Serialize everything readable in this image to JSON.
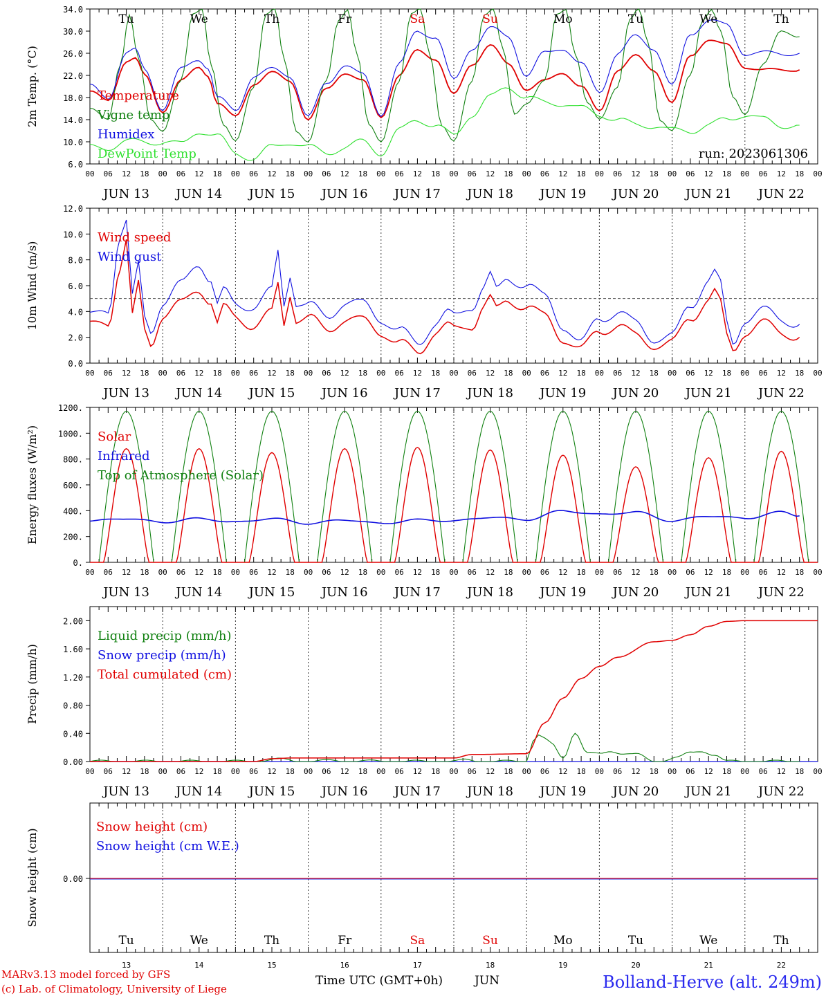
{
  "footer": {
    "model": "MARv3.13 model forced by GFS",
    "copyright": "(c) Lab. of Climatology, University of Liege",
    "time_axis": "Time UTC (GMT+0h)",
    "month": "JUN",
    "station": "Bolland-Herve (alt. 249m)"
  },
  "x_axis": {
    "hour_labels": [
      "00",
      "06",
      "12",
      "18"
    ],
    "end_label": "00",
    "dates": [
      "JUN 13",
      "JUN 14",
      "JUN 15",
      "JUN 16",
      "JUN 17",
      "JUN 18",
      "JUN 19",
      "JUN 20",
      "JUN 21",
      "JUN 22"
    ],
    "day_numbers": [
      "13",
      "14",
      "15",
      "16",
      "17",
      "18",
      "19",
      "20",
      "21",
      "22"
    ],
    "weekdays": [
      "Tu",
      "We",
      "Th",
      "Fr",
      "Sa",
      "Su",
      "Mo",
      "Tu",
      "We",
      "Th"
    ],
    "weekend_color": "#e00000"
  },
  "chart_data": [
    {
      "type": "line",
      "ylabel": "2m Temp. (°C)",
      "ylim": [
        6.0,
        34.0
      ],
      "yticks": [
        "6.0",
        "10.0",
        "14.0",
        "18.0",
        "22.0",
        "26.0",
        "30.0",
        "34.0"
      ],
      "run_label": "run: 2023061306",
      "x_unit": "hours since JUN 13 00 UTC",
      "series": [
        {
          "name": "Temperature",
          "color": "#e00000",
          "x": [
            0,
            6,
            12,
            15,
            18,
            24,
            30,
            36,
            39,
            42,
            48,
            54,
            60,
            66,
            72,
            78,
            84,
            90,
            96,
            102,
            108,
            114,
            120,
            126,
            132,
            138,
            144,
            150,
            156,
            162,
            168,
            174,
            180,
            186,
            192,
            198,
            204,
            210,
            216,
            222,
            228,
            234
          ],
          "y": [
            19,
            17.5,
            24.5,
            25,
            22,
            15.5,
            21,
            23.5,
            22,
            17,
            14.5,
            20.5,
            22.5,
            21,
            14,
            19.5,
            22.5,
            21,
            14.5,
            22,
            26.5,
            25,
            18.5,
            24,
            27.5,
            24,
            19.5,
            21,
            22.5,
            20,
            15.5,
            23,
            25.5,
            23,
            17,
            25.5,
            28.5,
            27.5,
            23.5,
            23,
            23,
            23
          ]
        },
        {
          "name": "Vigne temp",
          "color": "#108010",
          "x": [
            0,
            6,
            10,
            13,
            16,
            20,
            24,
            30,
            34,
            37,
            40,
            44,
            48,
            54,
            58,
            61,
            64,
            68,
            72,
            78,
            82,
            85,
            88,
            92,
            96,
            102,
            106,
            109,
            112,
            116,
            120,
            126,
            130,
            133,
            136,
            140,
            144,
            150,
            154,
            157,
            160,
            164,
            168,
            174,
            178,
            181,
            184,
            188,
            192,
            198,
            202,
            205,
            208,
            212,
            216,
            222,
            228,
            234
          ],
          "y": [
            16,
            14,
            24,
            33,
            25,
            14,
            12,
            21,
            33,
            34,
            24,
            13,
            10,
            20,
            33,
            34,
            25,
            12,
            10,
            21,
            32,
            34,
            26,
            13,
            10,
            21,
            33,
            34,
            26,
            13,
            10,
            21,
            33,
            34,
            27,
            15,
            17,
            21,
            33,
            34,
            26,
            17,
            14,
            20,
            32,
            34,
            28,
            14,
            12,
            22,
            32,
            34,
            30,
            18,
            15,
            24,
            30,
            29
          ]
        },
        {
          "name": "Humidex",
          "color": "#1010e0",
          "x": [
            0,
            6,
            12,
            15,
            18,
            24,
            30,
            36,
            39,
            42,
            48,
            54,
            60,
            66,
            72,
            78,
            84,
            90,
            96,
            102,
            108,
            114,
            120,
            126,
            132,
            138,
            144,
            150,
            156,
            162,
            168,
            174,
            180,
            186,
            192,
            198,
            204,
            210,
            216,
            222,
            228,
            234
          ],
          "y": [
            20,
            18,
            26,
            26.5,
            23,
            16,
            23,
            25,
            23.5,
            18,
            15.5,
            22,
            23,
            22,
            14.5,
            20.5,
            24,
            22,
            15,
            24,
            30,
            29,
            21,
            27,
            30.5,
            29,
            22,
            26,
            27,
            24,
            19,
            26,
            29,
            27,
            20,
            29.5,
            32,
            31,
            26,
            26,
            26,
            26
          ]
        },
        {
          "name": "DewPoint Temp",
          "color": "#30e030",
          "x": [
            0,
            6,
            12,
            18,
            24,
            30,
            36,
            42,
            48,
            54,
            60,
            66,
            72,
            78,
            84,
            90,
            96,
            102,
            108,
            114,
            120,
            126,
            132,
            138,
            144,
            150,
            156,
            162,
            168,
            174,
            180,
            186,
            192,
            198,
            204,
            210,
            216,
            222,
            228,
            234
          ],
          "y": [
            9,
            9,
            10,
            10,
            10,
            9.5,
            12,
            11,
            8,
            7,
            9,
            10,
            9,
            8,
            9,
            10,
            8,
            12,
            14,
            13,
            11,
            15,
            18,
            20,
            18,
            17,
            17,
            16,
            15,
            14,
            13,
            13,
            12,
            12,
            13,
            14,
            15,
            14,
            13,
            13
          ]
        }
      ]
    },
    {
      "type": "line",
      "ylabel": "10m Wind (m/s)",
      "ylim": [
        0.0,
        12.0
      ],
      "yticks": [
        "0.0",
        "2.0",
        "4.0",
        "6.0",
        "8.0",
        "10.0",
        "12.0"
      ],
      "reference_line": 5.0,
      "x_unit": "hours since JUN 13 00 UTC",
      "series": [
        {
          "name": "Wind speed",
          "color": "#e00000",
          "x": [
            0,
            6,
            10,
            12,
            14,
            16,
            18,
            20,
            24,
            30,
            36,
            40,
            42,
            44,
            48,
            54,
            60,
            62,
            64,
            66,
            68,
            72,
            78,
            84,
            90,
            96,
            102,
            108,
            114,
            118,
            120,
            126,
            130,
            132,
            134,
            138,
            144,
            150,
            156,
            162,
            168,
            174,
            180,
            186,
            192,
            198,
            204,
            206,
            208,
            210,
            212,
            216,
            222,
            228,
            234
          ],
          "y": [
            2.8,
            3.2,
            7.5,
            9.5,
            3.5,
            6,
            2.5,
            1.5,
            3.8,
            4.5,
            5.8,
            4.8,
            3,
            4.2,
            3.5,
            3,
            3.8,
            6,
            3,
            5.5,
            3.5,
            3.5,
            2.5,
            3.5,
            3.2,
            2.5,
            1.5,
            0.8,
            2.5,
            2.8,
            2.5,
            3,
            4.5,
            5,
            4,
            4.8,
            4.5,
            3.5,
            2,
            1,
            2.5,
            3,
            2,
            1.5,
            1.5,
            3.5,
            5,
            5.5,
            4.5,
            2,
            1,
            2.5,
            3,
            2.5,
            2
          ]
        },
        {
          "name": "Wind gust",
          "color": "#1010e0",
          "x": [
            0,
            6,
            10,
            12,
            14,
            16,
            18,
            20,
            24,
            30,
            36,
            40,
            42,
            44,
            48,
            54,
            60,
            62,
            64,
            66,
            68,
            72,
            78,
            84,
            90,
            96,
            102,
            108,
            114,
            118,
            120,
            126,
            130,
            132,
            134,
            138,
            144,
            150,
            156,
            162,
            168,
            174,
            180,
            186,
            192,
            198,
            204,
            206,
            208,
            210,
            212,
            216,
            222,
            228,
            234
          ],
          "y": [
            3.5,
            4.2,
            10,
            11,
            5,
            7.5,
            3.5,
            2.5,
            4.8,
            6,
            7.8,
            6.5,
            4.5,
            5.5,
            4.5,
            4.5,
            5.5,
            8.5,
            4.5,
            7,
            4.8,
            4.5,
            3.5,
            4.8,
            4.5,
            3.5,
            2.5,
            1.5,
            3.2,
            3.8,
            3.5,
            4.5,
            6,
            6.8,
            5.5,
            6.5,
            6.2,
            5,
            3,
            1.5,
            3.5,
            4,
            3,
            2,
            2,
            4.5,
            6.5,
            7,
            6,
            3,
            1.5,
            3.5,
            4,
            3.5,
            3
          ]
        }
      ]
    },
    {
      "type": "line",
      "ylabel": "Energy fluxes (W/m²)",
      "ylim": [
        0,
        1200
      ],
      "yticks": [
        "0.",
        "200.",
        "400.",
        "600.",
        "800.",
        "1000.",
        "1200."
      ],
      "x_unit": "hours since JUN 13 00 UTC",
      "series": [
        {
          "name": "Solar",
          "color": "#e00000",
          "daily_peaks": [
            880,
            880,
            850,
            880,
            890,
            870,
            830,
            740,
            810,
            860
          ]
        },
        {
          "name": "Infrared",
          "color": "#1010e0",
          "x": [
            0,
            12,
            24,
            36,
            48,
            60,
            72,
            84,
            96,
            108,
            120,
            132,
            144,
            156,
            168,
            180,
            192,
            204,
            216,
            228,
            234
          ],
          "y": [
            320,
            340,
            310,
            340,
            310,
            340,
            300,
            330,
            300,
            330,
            320,
            350,
            330,
            400,
            370,
            390,
            320,
            360,
            340,
            390,
            360
          ]
        },
        {
          "name": "Top of Atmosphere (Solar)",
          "color": "#108010",
          "daily_peak": 1170
        }
      ]
    },
    {
      "type": "line",
      "ylabel": "Precip (mm/h)",
      "ylim": [
        0.0,
        2.2
      ],
      "yticks": [
        "0.00",
        "0.40",
        "0.80",
        "1.20",
        "1.60",
        "2.00"
      ],
      "x_unit": "hours since JUN 13 00 UTC",
      "series": [
        {
          "name": "Liquid precip (mm/h)",
          "color": "#108010",
          "x": [
            0,
            54,
            58,
            62,
            70,
            80,
            100,
            120,
            124,
            130,
            140,
            144,
            146,
            148,
            150,
            152,
            156,
            160,
            164,
            168,
            172,
            176,
            180,
            186,
            194,
            198,
            202,
            206,
            210,
            234
          ],
          "y": [
            0,
            0,
            0.02,
            0.03,
            0,
            0.01,
            0,
            0,
            0.02,
            0,
            0,
            0,
            0.3,
            0.38,
            0.32,
            0.25,
            0.05,
            0.42,
            0.12,
            0.1,
            0.15,
            0.12,
            0.1,
            0,
            0.06,
            0.12,
            0.15,
            0.1,
            0,
            0
          ]
        },
        {
          "name": "Snow precip (mm/h)",
          "color": "#1010e0",
          "x": [
            0,
            240
          ],
          "y": [
            0,
            0
          ]
        },
        {
          "name": "Total cumulated (cm)",
          "color": "#e00000",
          "x": [
            0,
            54,
            60,
            66,
            96,
            120,
            126,
            144,
            150,
            156,
            162,
            168,
            174,
            186,
            192,
            198,
            204,
            210,
            216,
            240
          ],
          "y": [
            0,
            0,
            0.04,
            0.05,
            0.05,
            0.05,
            0.1,
            0.11,
            0.55,
            0.9,
            1.18,
            1.35,
            1.48,
            1.7,
            1.72,
            1.8,
            1.92,
            1.99,
            2.0,
            2.0
          ]
        }
      ]
    },
    {
      "type": "line",
      "ylabel": "Snow height (cm)",
      "yticks": [
        "0.00"
      ],
      "x_unit": "hours since JUN 13 00 UTC",
      "series": [
        {
          "name": "Snow height (cm)",
          "color": "#e00000",
          "x": [
            0,
            240
          ],
          "y": [
            0,
            0
          ]
        },
        {
          "name": "Snow height (cm W.E.)",
          "color": "#1010e0",
          "x": [
            0,
            240
          ],
          "y": [
            0,
            0
          ]
        }
      ]
    }
  ]
}
